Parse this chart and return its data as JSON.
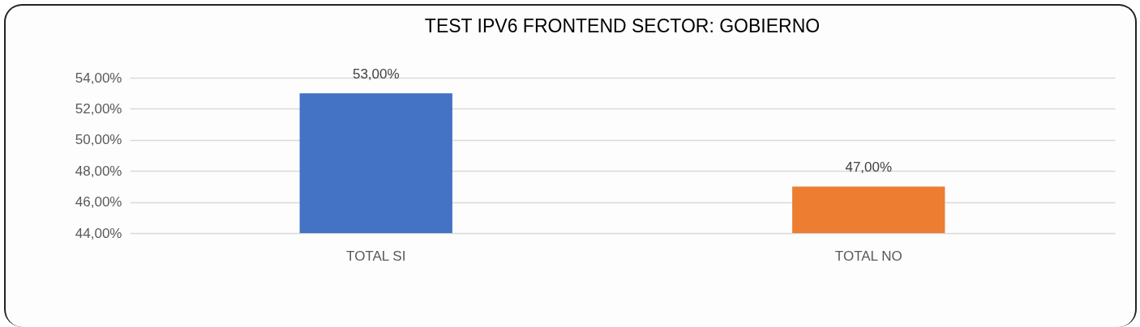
{
  "chart_data": {
    "type": "bar",
    "title": "TEST IPV6 FRONTEND SECTOR: GOBIERNO",
    "categories": [
      "TOTAL SI",
      "TOTAL NO"
    ],
    "values": [
      53,
      47
    ],
    "colors": [
      "#4472c4",
      "#ed7d31"
    ],
    "value_labels": [
      "53,00%",
      "47,00%"
    ],
    "ylim": [
      44,
      54
    ],
    "yticks": [
      {
        "value": 44,
        "label": "44,00%"
      },
      {
        "value": 46,
        "label": "46,00%"
      },
      {
        "value": 48,
        "label": "48,00%"
      },
      {
        "value": 50,
        "label": "50,00%"
      },
      {
        "value": 52,
        "label": "52,00%"
      },
      {
        "value": 54,
        "label": "54,00%"
      }
    ],
    "grid": "y"
  }
}
